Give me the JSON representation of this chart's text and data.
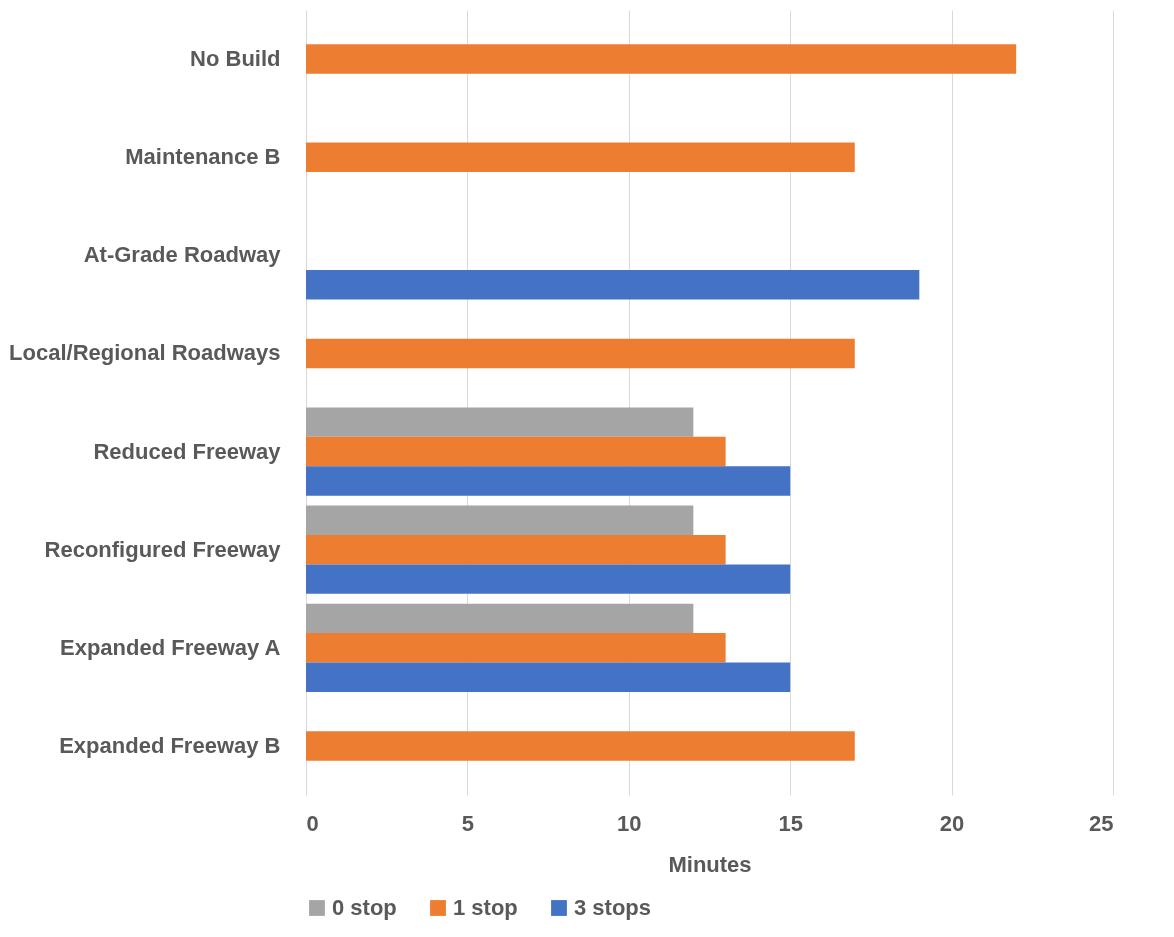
{
  "chart_data": {
    "type": "bar",
    "orientation": "horizontal",
    "xlabel": "Minutes",
    "categories": [
      "No Build",
      "Maintenance B",
      "At-Grade Roadway",
      "Local/Regional Roadways",
      "Reduced Freeway",
      "Reconfigured Freeway",
      "Expanded Freeway A",
      "Expanded Freeway B"
    ],
    "series": [
      {
        "name": "0 stop",
        "color": "#a5a5a5",
        "values": [
          null,
          null,
          null,
          null,
          12,
          12,
          12,
          null
        ]
      },
      {
        "name": "1 stop",
        "color": "#ed7d31",
        "values": [
          22,
          17,
          null,
          17,
          13,
          13,
          13,
          17
        ]
      },
      {
        "name": "3 stops",
        "color": "#4472c4",
        "values": [
          null,
          null,
          19,
          null,
          15,
          15,
          15,
          null
        ]
      }
    ],
    "xlim": [
      0,
      25
    ],
    "xticks": [
      0,
      5,
      10,
      15,
      20,
      25
    ],
    "grid": "x",
    "legend": "bottom"
  }
}
